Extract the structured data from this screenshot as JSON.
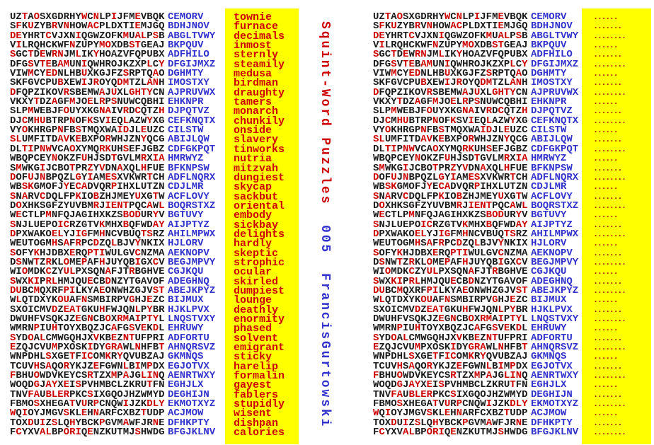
{
  "spine": {
    "title": "Squint-Word Puzzles",
    "number": "005",
    "author": "FrancisGurtowski"
  },
  "colors": {
    "grid_letter": "#1a1a1a",
    "hidden_letter_red": "#cc0000",
    "hint_blue": "#3232cc",
    "answer_red": "#cc0000",
    "panel_yellow": "#ffff00",
    "dot_red": "#aa1a00",
    "spine_title_red": "#cc0000",
    "spine_author_blue": "#3232cc"
  },
  "puzzle": {
    "description_left_panel": "solved grid with answers shown",
    "description_right_panel": "same grid with answers replaced by dots",
    "rows": [
      {
        "letters": "UZTAOSXGDRHYWCNLPIJFMEVBQK",
        "hint": "CEMORV",
        "answer": "townie"
      },
      {
        "letters": "SFKUZYBRVNHOWACPLDXTIEMJGQ",
        "hint": "BDHJNOV",
        "answer": "furnace"
      },
      {
        "letters": "DEYHRTCVJXNIQGWZOFKMUALPSB",
        "hint": "ABGLTVWY",
        "answer": "decimals"
      },
      {
        "letters": "VILRQHCKWFNZUPYMOXDBSTGEAJ",
        "hint": "BKPQUV",
        "answer": "inmost"
      },
      {
        "letters": "SGCTDEWRNJMLIKYHOAZVFQPUBX",
        "hint": "ADFHILO",
        "answer": "sternly"
      },
      {
        "letters": "DFGSVTEBAMUNIQWHROJKZXPLCY",
        "hint": "DFGIJMXZ",
        "answer": "steamily"
      },
      {
        "letters": "VIWMCYEDNLHBUXKGJFZSRPTQAO",
        "hint": "DGHMTY",
        "answer": "medusa"
      },
      {
        "letters": "SKFGVCPUBXEWIJROYQDMTZLANH",
        "hint": "IMOSTXY",
        "answer": "birdman"
      },
      {
        "letters": "DFQPZIKOVRSBEMWAJUXLGHTYCN",
        "hint": "AJPRUVWX",
        "answer": "draughty"
      },
      {
        "letters": "VKXYTDZAGFMJOELRPSNUWCQBHI",
        "hint": "EHKNPR",
        "answer": "tamers"
      },
      {
        "letters": "SLPMWEBJFOUYXKGNAIVRDCQTZH",
        "hint": "DJPQTVZ",
        "answer": "monarch"
      },
      {
        "letters": "DJCMHUBTRPNOFKSVIEQLAZWYXG",
        "hint": "CEFKNQTX",
        "answer": "chunkily"
      },
      {
        "letters": "VYOKHRGPNFBSTMQXWAIDJLEUZC",
        "hint": "CILSTW",
        "answer": "onside"
      },
      {
        "letters": "SLUMFITDAVKEBXPORWHJZNYQCG",
        "hint": "ABIJLQW",
        "answer": "slavery"
      },
      {
        "letters": "DLTIPNWVCAOXYMQRKUHSEFJGBZ",
        "hint": "CDFGKPQT",
        "answer": "tinworks"
      },
      {
        "letters": "WBQPCEYNOKZFUHJSDTGVLMRXIA",
        "hint": "HMRWYZ",
        "answer": "nutria"
      },
      {
        "letters": "SMWKGIJCBOTPRZYVDNAXQLHFUE",
        "hint": "BFKNPSW",
        "answer": "mitzvah"
      },
      {
        "letters": "DOFUJNBPQZLGYIAMESXVKWRTCH",
        "hint": "ADFLNQRX",
        "answer": "dungiest"
      },
      {
        "letters": "WBSKGMOFJYECADVQRPIHXLUTZN",
        "hint": "CDJLMR",
        "answer": "skycap"
      },
      {
        "letters": "SNARVCDQLFPKIOBZHJMEYUXGTW",
        "hint": "ACFLOVY",
        "answer": "sackbut"
      },
      {
        "letters": "DOXHKSGFZYUVBMRJIENTPQCAWL",
        "hint": "BOQRSTXZ",
        "answer": "oriental"
      },
      {
        "letters": "WECTLPMNFQJAGIHXKZSBODURYV",
        "hint": "BGTUVY",
        "answer": "embody"
      },
      {
        "letters": "SNJLUEPOICRZGTVKMHXBQFWDAY",
        "hint": "AIJPTYZ",
        "answer": "sickbay"
      },
      {
        "letters": "DPXWAKOELYJIGFMHNCVBUQTSRZ",
        "hint": "AHILMPWX",
        "answer": "delights"
      },
      {
        "letters": "WEUTOGMHSAFRPCDZQLBJVYNKIX",
        "hint": "HJLORV",
        "answer": "hardly"
      },
      {
        "letters": "SOFYKHJDBXERQPTIWULGVCNZMA",
        "hint": "AEKNOPV",
        "answer": "skeptic"
      },
      {
        "letters": "DSNWTZRKLOMEPAFHJUYQBIGXCV",
        "hint": "BEGJMPVY",
        "answer": "strophic"
      },
      {
        "letters": "WIOMDKCZYULPXSQNAFJTRBGHVE",
        "hint": "CGJKQU",
        "answer": "ocular"
      },
      {
        "letters": "SWXKIPRLHMJQUECBDNZYTGAVOF",
        "hint": "ADEGHNQ",
        "answer": "skirled"
      },
      {
        "letters": "DUBCMQXRFPILKYAEONWHZGJVST",
        "hint": "ABEJKPYZ",
        "answer": "dumpiest"
      },
      {
        "letters": "WLQTDXYKOUAFNSMBIRPVGHJEZC",
        "hint": "BIJMUX",
        "answer": "lounge"
      },
      {
        "letters": "SXOICMVDZEATGKUHFWJQNLPYBR",
        "hint": "HJKLPVX",
        "answer": "deathly"
      },
      {
        "letters": "DWUHFVSQKJZEGNCBOXRMAIPTYL",
        "hint": "LNQSTVXY",
        "answer": "enormity"
      },
      {
        "letters": "WMRNPIUHTOYXBQZJCAFGSVEKDL",
        "hint": "EHRUWY",
        "answer": "phased"
      },
      {
        "letters": "SYDOALCMWGQHJXVKBEZNTUFPRI",
        "hint": "ADFORTU",
        "answer": "solvent"
      },
      {
        "letters": "EZQJCVUMPXOSKIDYGRAWLNHFBT",
        "hint": "AHNQRSVZ",
        "answer": "emigrant"
      },
      {
        "letters": "WNPDHLSXGETFICOMKRYQVUBZAJ",
        "hint": "GKMNQS",
        "answer": "sticky"
      },
      {
        "letters": "TCUVHSAQORYKJZEFGWNLBIMPDX",
        "hint": "EGJOTVX",
        "answer": "harelip"
      },
      {
        "letters": "FBHUOWDVKEYCSRTZXMPAJGLINQ",
        "hint": "AENRTWXY",
        "answer": "formalin"
      },
      {
        "letters": "WOQDGJAYXEISPVHMBCLZKRUTFN",
        "hint": "EGHJLX",
        "answer": "gayest"
      },
      {
        "letters": "TNVFAUBLERPKCSIXGQOJHZWMYD",
        "hint": "DEGHIJN",
        "answer": "fablers"
      },
      {
        "letters": "FBMOSXHEGATVURPCNQWIJZKDLY",
        "hint": "EKMOTXYZ",
        "answer": "stupidly"
      },
      {
        "letters": "WQIOYJMGVSKLEHNARFCXBZTUDP",
        "hint": "ACJMOW",
        "answer": "wisent"
      },
      {
        "letters": "TOXDUIZSLQHYBCKPGVMAWFJRNE",
        "hint": "DFHKPTY",
        "answer": "dishpan"
      },
      {
        "letters": "FCYXVALBPORIQENZKUTMJSHWDG",
        "hint": "BFGJKLNV",
        "answer": "calories"
      }
    ]
  }
}
